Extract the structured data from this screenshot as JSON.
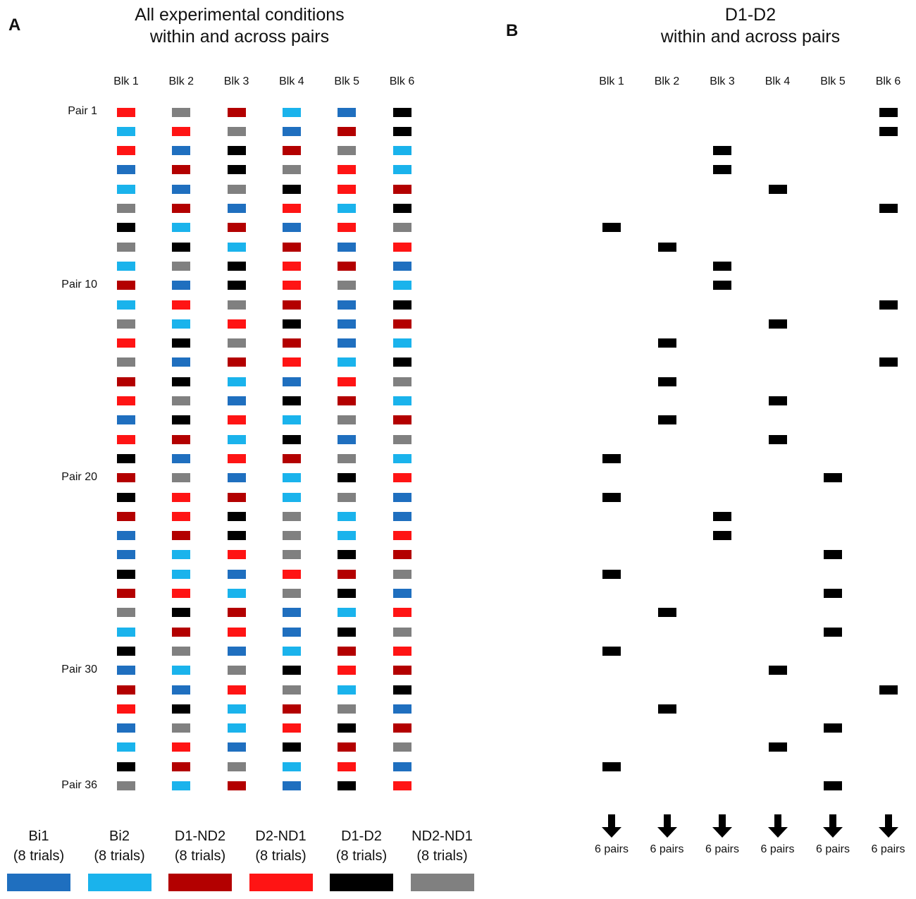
{
  "chart_data": [
    {
      "panel": "A",
      "type": "table",
      "title": "All experimental conditions\nwithin and across pairs",
      "title_lines": [
        "All experimental conditions",
        "within and across pairs"
      ],
      "columns": [
        "Blk 1",
        "Blk 2",
        "Blk 3",
        "Blk 4",
        "Blk 5",
        "Blk 6"
      ],
      "row_labels": [
        {
          "row": 1,
          "label": "Pair 1"
        },
        {
          "row": 10,
          "label": "Pair 10"
        },
        {
          "row": 20,
          "label": "Pair 20"
        },
        {
          "row": 30,
          "label": "Pair 30"
        },
        {
          "row": 36,
          "label": "Pair 36"
        }
      ],
      "grid": [
        [
          "D2-ND1",
          "ND2-ND1",
          "D1-ND2",
          "Bi2",
          "Bi1",
          "D1-D2"
        ],
        [
          "Bi2",
          "D2-ND1",
          "ND2-ND1",
          "Bi1",
          "D1-ND2",
          "D1-D2"
        ],
        [
          "D2-ND1",
          "Bi1",
          "D1-D2",
          "D1-ND2",
          "ND2-ND1",
          "Bi2"
        ],
        [
          "Bi1",
          "D1-ND2",
          "D1-D2",
          "ND2-ND1",
          "D2-ND1",
          "Bi2"
        ],
        [
          "Bi2",
          "Bi1",
          "ND2-ND1",
          "D1-D2",
          "D2-ND1",
          "D1-ND2"
        ],
        [
          "ND2-ND1",
          "D1-ND2",
          "Bi1",
          "D2-ND1",
          "Bi2",
          "D1-D2"
        ],
        [
          "D1-D2",
          "Bi2",
          "D1-ND2",
          "Bi1",
          "D2-ND1",
          "ND2-ND1"
        ],
        [
          "ND2-ND1",
          "D1-D2",
          "Bi2",
          "D1-ND2",
          "Bi1",
          "D2-ND1"
        ],
        [
          "Bi2",
          "ND2-ND1",
          "D1-D2",
          "D2-ND1",
          "D1-ND2",
          "Bi1"
        ],
        [
          "D1-ND2",
          "Bi1",
          "D1-D2",
          "D2-ND1",
          "ND2-ND1",
          "Bi2"
        ],
        [
          "Bi2",
          "D2-ND1",
          "ND2-ND1",
          "D1-ND2",
          "Bi1",
          "D1-D2"
        ],
        [
          "ND2-ND1",
          "Bi2",
          "D2-ND1",
          "D1-D2",
          "Bi1",
          "D1-ND2"
        ],
        [
          "D2-ND1",
          "D1-D2",
          "ND2-ND1",
          "D1-ND2",
          "Bi1",
          "Bi2"
        ],
        [
          "ND2-ND1",
          "Bi1",
          "D1-ND2",
          "D2-ND1",
          "Bi2",
          "D1-D2"
        ],
        [
          "D1-ND2",
          "D1-D2",
          "Bi2",
          "Bi1",
          "D2-ND1",
          "ND2-ND1"
        ],
        [
          "D2-ND1",
          "ND2-ND1",
          "Bi1",
          "D1-D2",
          "D1-ND2",
          "Bi2"
        ],
        [
          "Bi1",
          "D1-D2",
          "D2-ND1",
          "Bi2",
          "ND2-ND1",
          "D1-ND2"
        ],
        [
          "D2-ND1",
          "D1-ND2",
          "Bi2",
          "D1-D2",
          "Bi1",
          "ND2-ND1"
        ],
        [
          "D1-D2",
          "Bi1",
          "D2-ND1",
          "D1-ND2",
          "ND2-ND1",
          "Bi2"
        ],
        [
          "D1-ND2",
          "ND2-ND1",
          "Bi1",
          "Bi2",
          "D1-D2",
          "D2-ND1"
        ],
        [
          "D1-D2",
          "D2-ND1",
          "D1-ND2",
          "Bi2",
          "ND2-ND1",
          "Bi1"
        ],
        [
          "D1-ND2",
          "D2-ND1",
          "D1-D2",
          "ND2-ND1",
          "Bi2",
          "Bi1"
        ],
        [
          "Bi1",
          "D1-ND2",
          "D1-D2",
          "ND2-ND1",
          "Bi2",
          "D2-ND1"
        ],
        [
          "Bi1",
          "Bi2",
          "D2-ND1",
          "ND2-ND1",
          "D1-D2",
          "D1-ND2"
        ],
        [
          "D1-D2",
          "Bi2",
          "Bi1",
          "D2-ND1",
          "D1-ND2",
          "ND2-ND1"
        ],
        [
          "D1-ND2",
          "D2-ND1",
          "Bi2",
          "ND2-ND1",
          "D1-D2",
          "Bi1"
        ],
        [
          "ND2-ND1",
          "D1-D2",
          "D1-ND2",
          "Bi1",
          "Bi2",
          "D2-ND1"
        ],
        [
          "Bi2",
          "D1-ND2",
          "D2-ND1",
          "Bi1",
          "D1-D2",
          "ND2-ND1"
        ],
        [
          "D1-D2",
          "ND2-ND1",
          "Bi1",
          "Bi2",
          "D1-ND2",
          "D2-ND1"
        ],
        [
          "Bi1",
          "Bi2",
          "ND2-ND1",
          "D1-D2",
          "D2-ND1",
          "D1-ND2"
        ],
        [
          "D1-ND2",
          "Bi1",
          "D2-ND1",
          "ND2-ND1",
          "Bi2",
          "D1-D2"
        ],
        [
          "D2-ND1",
          "D1-D2",
          "Bi2",
          "D1-ND2",
          "ND2-ND1",
          "Bi1"
        ],
        [
          "Bi1",
          "ND2-ND1",
          "Bi2",
          "D2-ND1",
          "D1-D2",
          "D1-ND2"
        ],
        [
          "Bi2",
          "D2-ND1",
          "Bi1",
          "D1-D2",
          "D1-ND2",
          "ND2-ND1"
        ],
        [
          "D1-D2",
          "D1-ND2",
          "ND2-ND1",
          "Bi2",
          "D2-ND1",
          "Bi1"
        ],
        [
          "ND2-ND1",
          "Bi2",
          "D1-ND2",
          "Bi1",
          "D1-D2",
          "D2-ND1"
        ]
      ],
      "legend": [
        {
          "key": "Bi1",
          "label": "Bi1",
          "trials": "(8 trials)",
          "color": "#1f6fbf"
        },
        {
          "key": "Bi2",
          "label": "Bi2",
          "trials": "(8 trials)",
          "color": "#1ab3ec"
        },
        {
          "key": "D1-ND2",
          "label": "D1-ND2",
          "trials": "(8 trials)",
          "color": "#b30000"
        },
        {
          "key": "D2-ND1",
          "label": "D2-ND1",
          "trials": "(8 trials)",
          "color": "#ff1414"
        },
        {
          "key": "D1-D2",
          "label": "D1-D2",
          "trials": "(8 trials)",
          "color": "#000000"
        },
        {
          "key": "ND2-ND1",
          "label": "ND2-ND1",
          "trials": "(8 trials)",
          "color": "#808080"
        }
      ]
    },
    {
      "panel": "B",
      "type": "table",
      "title": "D1-D2\nwithin and across pairs",
      "title_lines": [
        "D1-D2",
        "within and across pairs"
      ],
      "columns": [
        "Blk 1",
        "Blk 2",
        "Blk 3",
        "Blk 4",
        "Blk 5",
        "Blk 6"
      ],
      "condition": "D1-D2",
      "color": "#000000",
      "totals": [
        "6 pairs",
        "6 pairs",
        "6 pairs",
        "6 pairs",
        "6 pairs",
        "6 pairs"
      ]
    }
  ],
  "panels": {
    "a_letter": "A",
    "b_letter": "B"
  }
}
